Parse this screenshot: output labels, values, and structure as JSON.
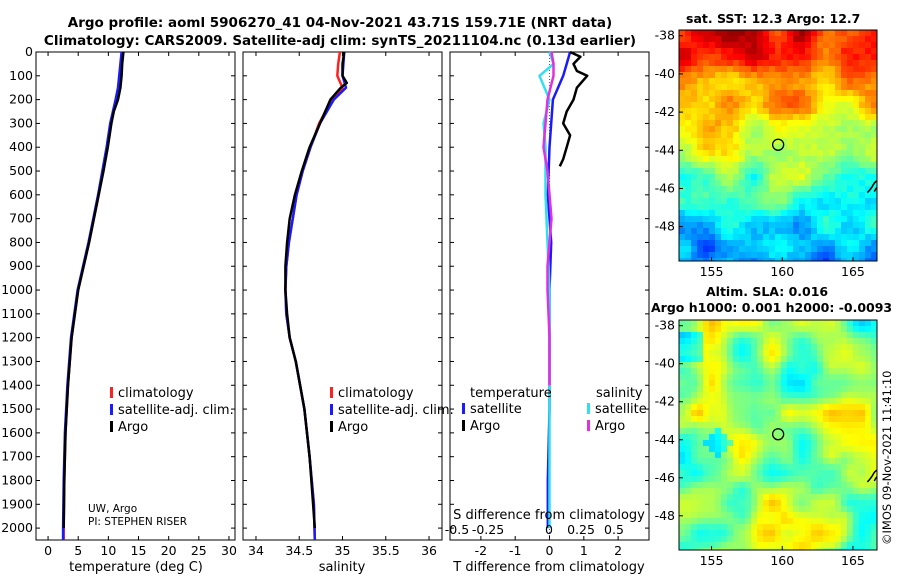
{
  "header": {
    "line1": "Argo profile: aoml 5906270_41 04-Nov-2021 43.71S 159.71E (NRT data)",
    "line2": "Climatology: CARS2009. Satellite-adj clim: synTS_20211104.nc (0.13d earlier)"
  },
  "credit": {
    "line1": "UW, Argo",
    "line2": "PI: STEPHEN RISER"
  },
  "watermark": "©IMOS 09-Nov-2021 11:41:10",
  "colors": {
    "climatology": "#ff2020",
    "satellite": "#1a1aff",
    "argo": "#000000",
    "sat_salinity": "#30e0f0",
    "argo_salinity": "#e030e0"
  },
  "chart_data": [
    {
      "type": "line",
      "title": "",
      "xlabel": "temperature (deg C)",
      "ylabel": "",
      "xlim": [
        -2,
        31
      ],
      "ylim": [
        2050,
        0
      ],
      "xticks": [
        0,
        5,
        10,
        15,
        20,
        25,
        30
      ],
      "yticks": [
        0,
        100,
        200,
        300,
        400,
        500,
        600,
        700,
        800,
        900,
        1000,
        1100,
        1200,
        1300,
        1400,
        1500,
        1600,
        1700,
        1800,
        1900,
        2000
      ],
      "legend": [
        "climatology",
        "satellite-adj. clim.",
        "Argo"
      ],
      "legend_position": "lower-right",
      "series": [
        {
          "name": "climatology",
          "color": "#ff2020",
          "depth": [
            0,
            50,
            100,
            150,
            200,
            300,
            400,
            600,
            800,
            1000,
            1200,
            1400,
            1600,
            1800,
            2000,
            2050
          ],
          "values": [
            12.4,
            12.2,
            12.0,
            11.7,
            11.3,
            10.4,
            9.8,
            8.4,
            6.8,
            5.0,
            3.9,
            3.3,
            2.9,
            2.7,
            2.6,
            2.6
          ]
        },
        {
          "name": "satellite-adj. clim.",
          "color": "#1a1aff",
          "depth": [
            0,
            50,
            100,
            150,
            200,
            300,
            400,
            600,
            800,
            1000,
            1200,
            1400,
            1600,
            1800,
            2000,
            2050
          ],
          "values": [
            12.2,
            12.0,
            11.8,
            11.6,
            11.2,
            10.3,
            9.7,
            8.3,
            6.7,
            4.9,
            3.8,
            3.2,
            2.8,
            2.6,
            2.5,
            2.5
          ]
        },
        {
          "name": "Argo",
          "color": "#000000",
          "depth": [
            0,
            50,
            100,
            150,
            200,
            250,
            300,
            400,
            500,
            600,
            800,
            1000,
            1200,
            1400,
            1600,
            1800,
            2000
          ],
          "values": [
            12.5,
            12.3,
            12.2,
            12.0,
            11.6,
            10.9,
            10.5,
            9.9,
            9.2,
            8.4,
            6.8,
            5.0,
            3.9,
            3.3,
            2.9,
            2.7,
            2.6
          ]
        }
      ]
    },
    {
      "type": "line",
      "xlabel": "salinity",
      "xlim": [
        33.85,
        36.15
      ],
      "ylim": [
        2050,
        0
      ],
      "xticks": [
        34,
        34.5,
        35,
        35.5,
        36
      ],
      "legend": [
        "climatology",
        "satellite-adj. clim.",
        "Argo"
      ],
      "legend_position": "lower-right",
      "series": [
        {
          "name": "climatology",
          "color": "#ff2020",
          "depth": [
            0,
            50,
            100,
            150,
            200,
            300,
            400,
            500,
            600,
            800,
            900,
            1000,
            1100,
            1200,
            1300,
            1500,
            1700,
            1900,
            2050
          ],
          "values": [
            34.97,
            34.95,
            34.94,
            35.0,
            34.88,
            34.73,
            34.63,
            34.54,
            34.47,
            34.38,
            34.35,
            34.34,
            34.35,
            34.39,
            34.46,
            34.56,
            34.62,
            34.67,
            34.68
          ]
        },
        {
          "name": "satellite-adj. clim.",
          "color": "#1a1aff",
          "depth": [
            0,
            50,
            100,
            150,
            200,
            300,
            400,
            500,
            600,
            800,
            900,
            1000,
            1100,
            1200,
            1300,
            1500,
            1700,
            1900,
            2050
          ],
          "values": [
            35.02,
            35.01,
            35.0,
            35.04,
            34.9,
            34.74,
            34.63,
            34.54,
            34.47,
            34.38,
            34.35,
            34.34,
            34.35,
            34.39,
            34.46,
            34.56,
            34.62,
            34.67,
            34.68
          ]
        },
        {
          "name": "Argo",
          "color": "#000000",
          "depth": [
            0,
            50,
            100,
            130,
            150,
            200,
            300,
            400,
            500,
            600,
            700,
            800,
            900,
            1000,
            1100,
            1200,
            1300,
            1500,
            1700,
            1900,
            2000
          ],
          "values": [
            35.02,
            35.0,
            35.0,
            35.05,
            34.98,
            34.86,
            34.74,
            34.62,
            34.53,
            34.45,
            34.39,
            34.36,
            34.34,
            34.34,
            34.36,
            34.39,
            34.46,
            34.56,
            34.62,
            34.66,
            34.68
          ]
        }
      ]
    },
    {
      "type": "line",
      "xlabel": "T difference from climatology",
      "xlabel_s": "S difference from climatology",
      "xlim": [
        -2.9,
        2.9
      ],
      "ylim": [
        2050,
        0
      ],
      "xticks": [
        -2,
        -1,
        0,
        1,
        2
      ],
      "s_ticks": [
        "-0.5",
        "-0.25",
        "0",
        "0.25",
        "0.5"
      ],
      "legend_titles": [
        "temperature",
        "salinity"
      ],
      "legend": [
        "satellite",
        "Argo",
        "satellite",
        "Argo"
      ],
      "series": [
        {
          "name": "T satellite",
          "color": "#1a1aff",
          "depth": [
            0,
            50,
            100,
            200,
            300,
            400,
            600,
            800,
            1000,
            1200,
            1500,
            1800,
            2000
          ],
          "values": [
            0.6,
            0.5,
            0.4,
            0.1,
            0.05,
            0.0,
            -0.05,
            0.05,
            0.0,
            0.0,
            0.0,
            -0.05,
            -0.05
          ]
        },
        {
          "name": "T Argo",
          "color": "#000000",
          "depth": [
            0,
            20,
            50,
            80,
            100,
            150,
            200,
            250,
            300,
            350,
            400,
            450,
            480
          ],
          "values": [
            0.6,
            0.9,
            0.7,
            0.8,
            1.1,
            0.8,
            0.7,
            0.5,
            0.4,
            0.6,
            0.5,
            0.4,
            0.3
          ]
        },
        {
          "name": "S satellite",
          "color": "#30e0f0",
          "depth": [
            0,
            50,
            100,
            200,
            300,
            400,
            600,
            800,
            1000,
            1200,
            1500,
            1800,
            2000
          ],
          "values": [
            0.0,
            0.02,
            -0.05,
            0.0,
            -0.03,
            -0.02,
            -0.02,
            -0.01,
            0.0,
            0.0,
            0.0,
            0.0,
            0.0
          ]
        },
        {
          "name": "S Argo",
          "color": "#e030e0",
          "depth": [
            0,
            50,
            100,
            200,
            300,
            400,
            500,
            600,
            700,
            800,
            900,
            1000,
            1200,
            1400
          ],
          "values": [
            0.01,
            0.02,
            0.02,
            -0.01,
            -0.02,
            -0.03,
            -0.01,
            0.0,
            0.01,
            0.0,
            -0.01,
            -0.01,
            0.0,
            0.0
          ]
        }
      ]
    }
  ],
  "maps": [
    {
      "title": "sat. SST: 12.3 Argo: 12.7",
      "xticks": [
        "155",
        "160",
        "165"
      ],
      "yticks": [
        "-38",
        "-40",
        "-42",
        "-44",
        "-46",
        "-48"
      ],
      "lon_range": [
        152.7,
        166.7
      ],
      "lat_range": [
        -49.8,
        -37.7
      ],
      "marker": {
        "lon": 159.71,
        "lat": -43.71
      },
      "type": "heatmap"
    },
    {
      "title1": "Altim. SLA: 0.016",
      "title2": "Argo h1000: 0.001 h2000: -0.0093",
      "xticks": [
        "155",
        "160",
        "165"
      ],
      "yticks": [
        "-38",
        "-40",
        "-42",
        "-44",
        "-46",
        "-48"
      ],
      "lon_range": [
        152.7,
        166.7
      ],
      "lat_range": [
        -49.8,
        -37.7
      ],
      "marker": {
        "lon": 159.71,
        "lat": -43.71
      },
      "type": "heatmap"
    }
  ]
}
